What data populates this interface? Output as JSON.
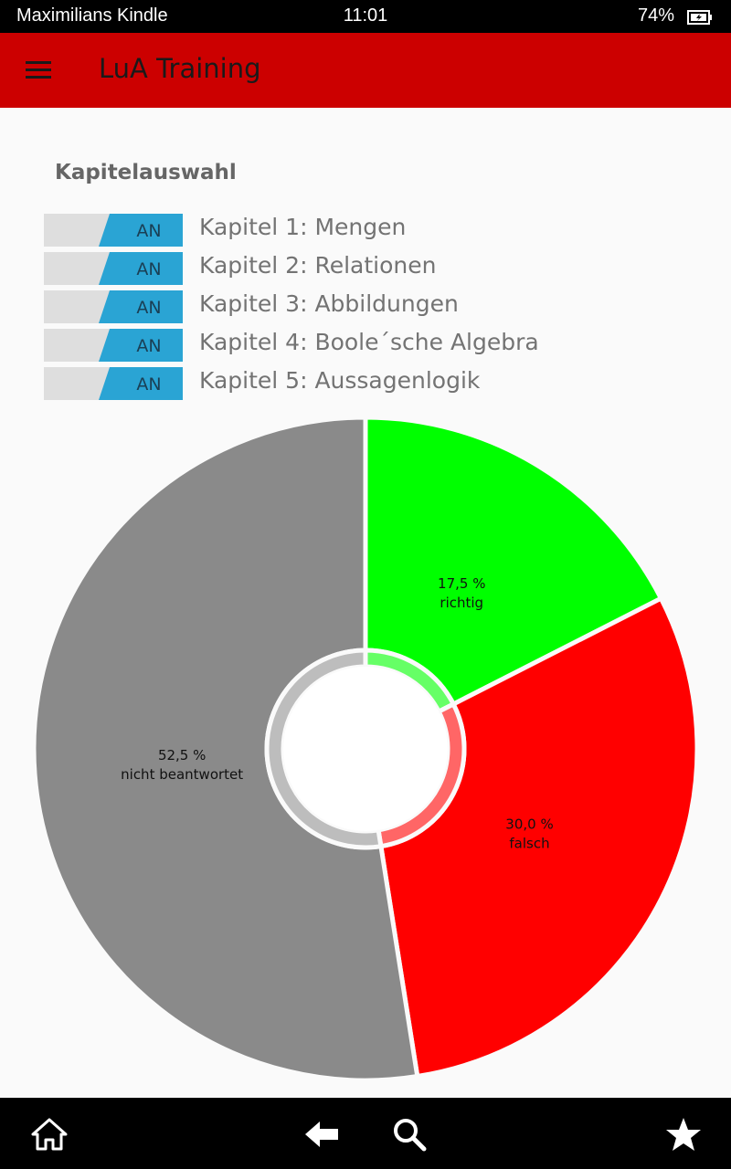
{
  "status": {
    "device": "Maximilians Kindle",
    "time": "11:01",
    "battery": "74%"
  },
  "app": {
    "title": "LuA Training"
  },
  "section": {
    "title": "Kapitelauswahl"
  },
  "chapters": [
    {
      "label": "Kapitel 1: Mengen",
      "toggle": "AN"
    },
    {
      "label": "Kapitel 2: Relationen",
      "toggle": "AN"
    },
    {
      "label": "Kapitel 3: Abbildungen",
      "toggle": "AN"
    },
    {
      "label": "Kapitel 4: Boole´sche Algebra",
      "toggle": "AN"
    },
    {
      "label": "Kapitel 5: Aussagenlogik",
      "toggle": "AN"
    }
  ],
  "chart_data": {
    "type": "pie",
    "slices": [
      {
        "value_label": "17,5 %",
        "label": "richtig",
        "value": 17.5,
        "color": "#00ff00",
        "inner_color": "#66ff66"
      },
      {
        "value_label": "30,0 %",
        "label": "falsch",
        "value": 30.0,
        "color": "#ff0000",
        "inner_color": "#ff6666"
      },
      {
        "value_label": "52,5 %",
        "label": "nicht beantwortet",
        "value": 52.5,
        "color": "#8a8a8a",
        "inner_color": "#bdbdbd"
      }
    ]
  },
  "colors": {
    "app_bar": "#cc0000",
    "toggle_on": "#2aa4d4"
  },
  "nav": {
    "icons": [
      "home-icon",
      "back-icon",
      "search-icon",
      "star-icon"
    ]
  }
}
